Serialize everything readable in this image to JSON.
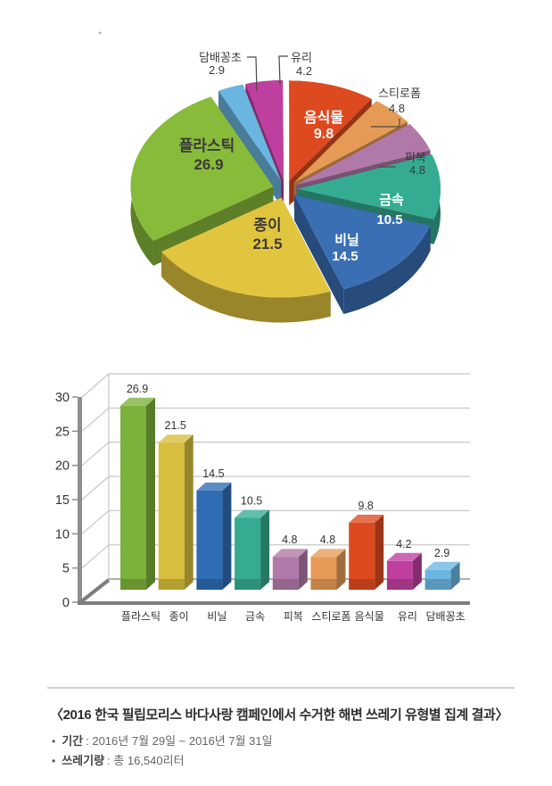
{
  "chart_data": [
    {
      "type": "pie",
      "unit": "%",
      "start_angle_deg": 0,
      "direction": "clockwise",
      "slices": [
        {
          "label": "음식물",
          "value": 9.8,
          "color": "#DD4A1F",
          "label_placement": "inside-white"
        },
        {
          "label": "스티로폼",
          "value": 4.8,
          "color": "#E59B55",
          "label_placement": "outside"
        },
        {
          "label": "피복",
          "value": 4.8,
          "color": "#B179A8",
          "label_placement": "outside"
        },
        {
          "label": "금속",
          "value": 10.5,
          "color": "#35AC92",
          "label_placement": "inside-white"
        },
        {
          "label": "비닐",
          "value": 14.5,
          "color": "#3A6FB4",
          "label_placement": "inside-white"
        },
        {
          "label": "종이",
          "value": 21.5,
          "color": "#E2C53E",
          "label_placement": "inside-dark"
        },
        {
          "label": "플라스틱",
          "value": 26.9,
          "color": "#89BB3B",
          "label_placement": "inside-dark"
        },
        {
          "label": "담배꽁초",
          "value": 2.9,
          "color": "#6AB6E0",
          "label_placement": "outside"
        },
        {
          "label": "유리",
          "value": 4.2,
          "color": "#BE3F9D",
          "label_placement": "outside"
        }
      ]
    },
    {
      "type": "bar",
      "categories": [
        "플라스틱",
        "종이",
        "비닐",
        "금속",
        "피복",
        "스티로폼",
        "음식물",
        "유리",
        "담배꽁초"
      ],
      "values": [
        26.9,
        21.5,
        14.5,
        10.5,
        4.8,
        4.8,
        9.8,
        4.2,
        2.9
      ],
      "colors": [
        "#7CB13B",
        "#D8BE3D",
        "#2E6CB4",
        "#35AC92",
        "#B179A8",
        "#E59B55",
        "#DD4A1F",
        "#BE3F9D",
        "#6AB6E0"
      ],
      "title": "",
      "xlabel": "",
      "ylabel": "",
      "ylim": [
        0,
        30
      ],
      "yticks": [
        0,
        5,
        10,
        15,
        20,
        25,
        30
      ],
      "grid": true,
      "legend": "none"
    }
  ],
  "footer": {
    "bullet_char": "•",
    "title": "〈2016 한국 필립모리스 바다사랑 캠페인에서 수거한 해변 쓰레기 유형별 집계 결과〉",
    "bullets": [
      {
        "label": "기간",
        "text": ": 2016년 7월 29일 ~ 2016년 7월 31일"
      },
      {
        "label": "쓰레기량",
        "text": ": 총 16,540리터"
      }
    ]
  },
  "colors": {
    "text_dark": "#333333",
    "grid_gray": "#c6c6c6",
    "axis_pole": "#8e8e8e",
    "axis_base": "#7d7d7d",
    "divider": "#cfcfcf"
  }
}
